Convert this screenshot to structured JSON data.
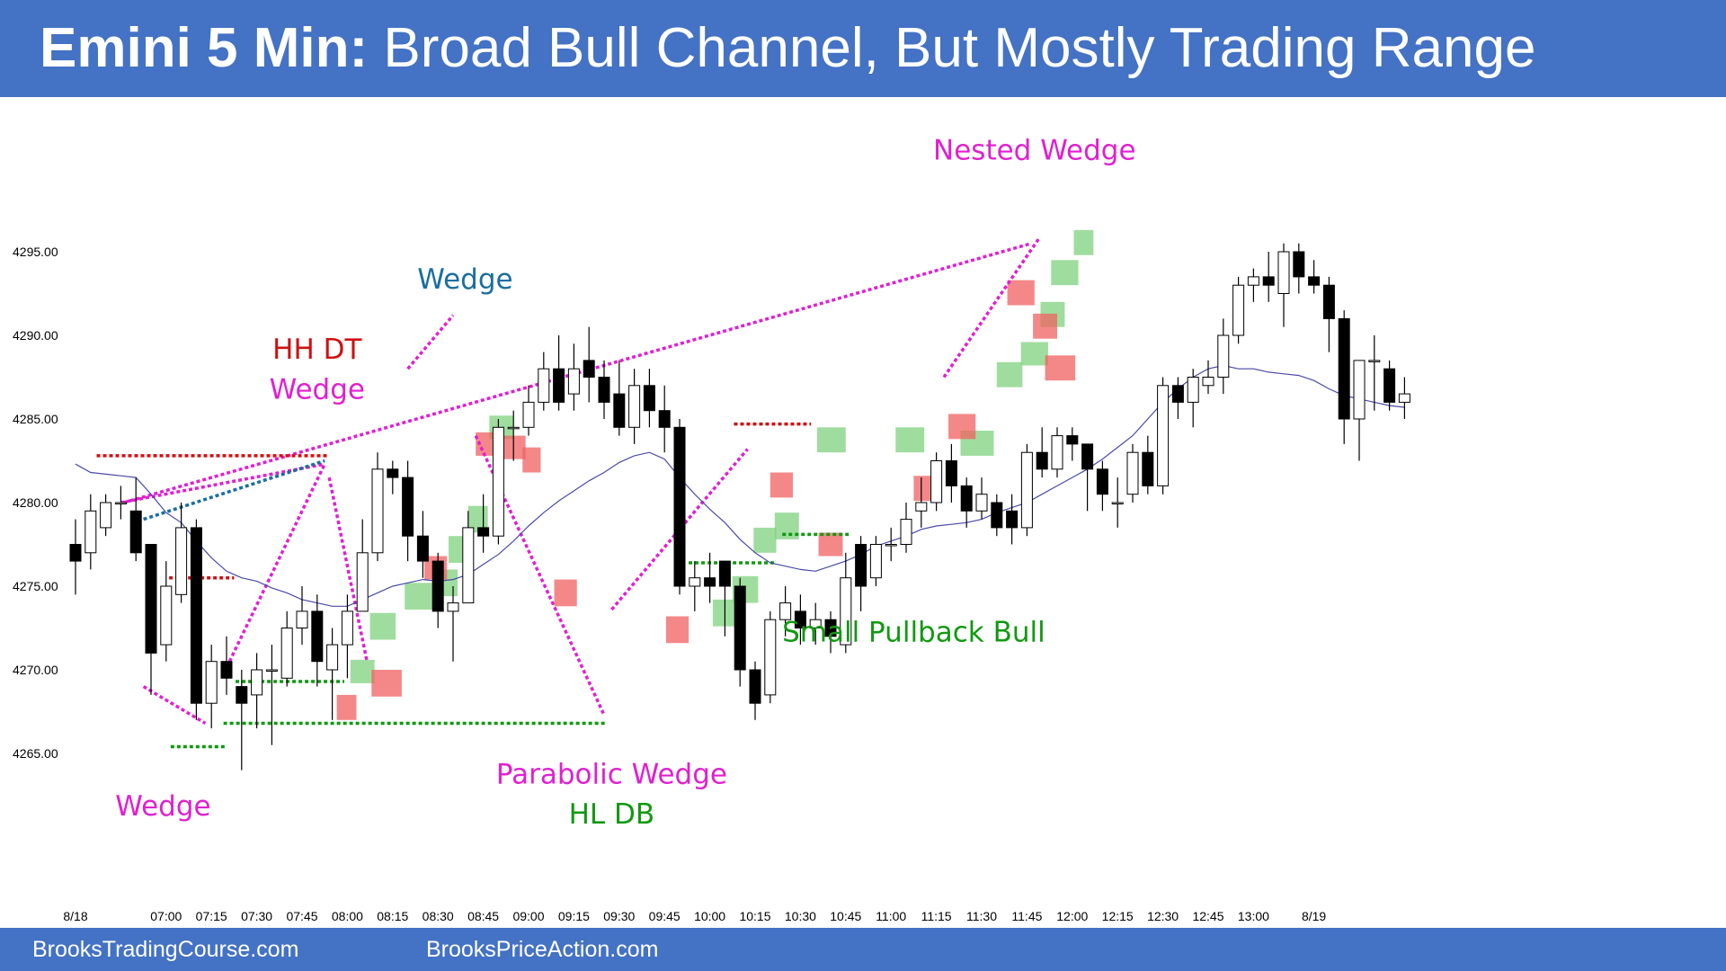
{
  "header": {
    "title_bold": "Emini 5 Min:",
    "title_rest": "Broad Bull Channel, But Mostly Trading Range"
  },
  "footer": {
    "left_link": "BrooksTradingCourse.com",
    "right_link": "BrooksPriceAction.com"
  },
  "colors": {
    "banner": "#4472c4",
    "bull_body": "#ffffff",
    "bear_body": "#000000",
    "ema": "#4a4aa8",
    "green_box": "#7fd17f",
    "red_box": "#f06060",
    "magenta": "#e020d0",
    "red_line": "#d01010",
    "green_line": "#119911",
    "teal_line": "#1a6ea0"
  },
  "chart_data": {
    "type": "candlestick",
    "title": "Emini 5 Min: Broad Bull Channel, But Mostly Trading Range",
    "ylim": [
      4262.5,
      4300
    ],
    "y_ticks": [
      4265,
      4270,
      4275,
      4280,
      4285,
      4290,
      4295
    ],
    "y_tick_labels": [
      "4265.00",
      "4270.00",
      "4275.00",
      "4280.00",
      "4285.00",
      "4290.00",
      "4295.00"
    ],
    "x_ticks": [
      {
        "i": 0,
        "label": "8/18"
      },
      {
        "i": 6,
        "label": "07:00"
      },
      {
        "i": 9,
        "label": "07:15"
      },
      {
        "i": 12,
        "label": "07:30"
      },
      {
        "i": 15,
        "label": "07:45"
      },
      {
        "i": 18,
        "label": "08:00"
      },
      {
        "i": 21,
        "label": "08:15"
      },
      {
        "i": 24,
        "label": "08:30"
      },
      {
        "i": 27,
        "label": "08:45"
      },
      {
        "i": 30,
        "label": "09:00"
      },
      {
        "i": 33,
        "label": "09:15"
      },
      {
        "i": 36,
        "label": "09:30"
      },
      {
        "i": 39,
        "label": "09:45"
      },
      {
        "i": 42,
        "label": "10:00"
      },
      {
        "i": 45,
        "label": "10:15"
      },
      {
        "i": 48,
        "label": "10:30"
      },
      {
        "i": 51,
        "label": "10:45"
      },
      {
        "i": 54,
        "label": "11:00"
      },
      {
        "i": 57,
        "label": "11:15"
      },
      {
        "i": 60,
        "label": "11:30"
      },
      {
        "i": 63,
        "label": "11:45"
      },
      {
        "i": 66,
        "label": "12:00"
      },
      {
        "i": 69,
        "label": "12:15"
      },
      {
        "i": 72,
        "label": "12:30"
      },
      {
        "i": 75,
        "label": "12:45"
      },
      {
        "i": 78,
        "label": "13:00"
      },
      {
        "i": 82,
        "label": "8/19"
      }
    ],
    "candles": [
      [
        4277.5,
        4276.5,
        4279.0,
        4274.5
      ],
      [
        4277.0,
        4279.5,
        4280.5,
        4276.0
      ],
      [
        4278.5,
        4280.0,
        4280.5,
        4278.0
      ],
      [
        4280.0,
        4280.0,
        4281.0,
        4279.0
      ],
      [
        4279.5,
        4277.0,
        4281.5,
        4276.5
      ],
      [
        4277.5,
        4271.0,
        4277.5,
        4268.5
      ],
      [
        4271.5,
        4275.0,
        4276.5,
        4270.5
      ],
      [
        4274.5,
        4278.5,
        4280.0,
        4274.0
      ],
      [
        4278.5,
        4268.0,
        4279.0,
        4267.0
      ],
      [
        4268.0,
        4270.5,
        4271.5,
        4266.5
      ],
      [
        4270.5,
        4269.5,
        4272.0,
        4268.5
      ],
      [
        4269.0,
        4268.0,
        4270.0,
        4264.0
      ],
      [
        4268.5,
        4270.0,
        4271.0,
        4266.5
      ],
      [
        4270.0,
        4270.0,
        4271.5,
        4265.5
      ],
      [
        4269.5,
        4272.5,
        4273.5,
        4269.0
      ],
      [
        4272.5,
        4273.5,
        4275.0,
        4271.5
      ],
      [
        4273.5,
        4270.5,
        4274.5,
        4269.0
      ],
      [
        4270.0,
        4271.5,
        4272.5,
        4267.0
      ],
      [
        4271.5,
        4273.5,
        4274.5,
        4269.5
      ],
      [
        4273.5,
        4277.0,
        4279.0,
        4273.5
      ],
      [
        4277.0,
        4282.0,
        4283.0,
        4276.5
      ],
      [
        4282.0,
        4281.5,
        4282.5,
        4280.5
      ],
      [
        4281.5,
        4278.0,
        4282.5,
        4276.5
      ],
      [
        4278.0,
        4276.5,
        4279.5,
        4275.5
      ],
      [
        4276.5,
        4273.5,
        4277.0,
        4272.5
      ],
      [
        4273.5,
        4274.0,
        4275.0,
        4270.5
      ],
      [
        4274.0,
        4278.5,
        4279.5,
        4274.0
      ],
      [
        4278.5,
        4278.0,
        4280.5,
        4277.0
      ],
      [
        4278.0,
        4284.5,
        4285.0,
        4277.5
      ],
      [
        4284.5,
        4284.5,
        4285.5,
        4282.5
      ],
      [
        4284.5,
        4286.0,
        4287.0,
        4284.0
      ],
      [
        4286.0,
        4288.0,
        4289.0,
        4285.5
      ],
      [
        4288.0,
        4286.0,
        4290.0,
        4285.5
      ],
      [
        4286.5,
        4288.0,
        4289.5,
        4285.5
      ],
      [
        4288.5,
        4287.5,
        4290.5,
        4286.0
      ],
      [
        4287.5,
        4286.0,
        4288.5,
        4285.0
      ],
      [
        4286.5,
        4284.5,
        4288.5,
        4284.0
      ],
      [
        4284.5,
        4287.0,
        4288.0,
        4283.5
      ],
      [
        4287.0,
        4285.5,
        4288.0,
        4284.5
      ],
      [
        4285.5,
        4284.5,
        4287.0,
        4283.0
      ],
      [
        4284.5,
        4275.0,
        4285.0,
        4274.5
      ],
      [
        4275.0,
        4275.5,
        4276.5,
        4273.5
      ],
      [
        4275.5,
        4275.0,
        4277.0,
        4274.0
      ],
      [
        4276.5,
        4275.0,
        4276.5,
        4272.0
      ],
      [
        4275.0,
        4270.0,
        4275.5,
        4269.0
      ],
      [
        4270.0,
        4268.0,
        4270.5,
        4267.0
      ],
      [
        4268.5,
        4273.0,
        4273.5,
        4268.0
      ],
      [
        4273.0,
        4274.0,
        4275.0,
        4272.0
      ],
      [
        4273.5,
        4272.5,
        4274.5,
        4271.5
      ],
      [
        4272.5,
        4273.0,
        4274.0,
        4271.5
      ],
      [
        4273.0,
        4272.0,
        4273.5,
        4271.0
      ],
      [
        4271.5,
        4275.5,
        4277.0,
        4271.0
      ],
      [
        4277.5,
        4275.0,
        4278.0,
        4273.5
      ],
      [
        4275.5,
        4277.5,
        4278.0,
        4275.0
      ],
      [
        4277.5,
        4277.5,
        4278.5,
        4276.5
      ],
      [
        4277.5,
        4279.0,
        4280.0,
        4277.0
      ],
      [
        4279.5,
        4280.0,
        4281.5,
        4278.5
      ],
      [
        4280.0,
        4282.5,
        4283.0,
        4279.5
      ],
      [
        4282.5,
        4281.0,
        4283.5,
        4280.0
      ],
      [
        4281.0,
        4279.5,
        4281.5,
        4278.5
      ],
      [
        4279.5,
        4280.5,
        4281.5,
        4279.0
      ],
      [
        4280.0,
        4278.5,
        4280.5,
        4278.0
      ],
      [
        4279.5,
        4278.5,
        4280.5,
        4277.5
      ],
      [
        4278.5,
        4283.0,
        4283.5,
        4278.0
      ],
      [
        4283.0,
        4282.0,
        4284.5,
        4281.5
      ],
      [
        4282.0,
        4284.0,
        4284.5,
        4281.5
      ],
      [
        4284.0,
        4283.5,
        4284.5,
        4282.5
      ],
      [
        4283.5,
        4282.0,
        4283.5,
        4279.5
      ],
      [
        4282.0,
        4280.5,
        4282.5,
        4279.5
      ],
      [
        4280.0,
        4280.0,
        4281.5,
        4278.5
      ],
      [
        4280.5,
        4283.0,
        4283.5,
        4280.0
      ],
      [
        4283.0,
        4281.0,
        4284.0,
        4280.5
      ],
      [
        4281.0,
        4287.0,
        4287.5,
        4280.5
      ],
      [
        4287.0,
        4286.0,
        4287.5,
        4285.0
      ],
      [
        4286.0,
        4287.5,
        4288.0,
        4284.5
      ],
      [
        4287.0,
        4287.5,
        4288.5,
        4286.5
      ],
      [
        4287.5,
        4290.0,
        4291.0,
        4286.5
      ],
      [
        4290.0,
        4293.0,
        4293.5,
        4289.5
      ],
      [
        4293.0,
        4293.5,
        4294.0,
        4292.0
      ],
      [
        4293.5,
        4293.0,
        4295.0,
        4292.0
      ],
      [
        4292.5,
        4295.0,
        4295.5,
        4290.5
      ],
      [
        4295.0,
        4293.5,
        4295.5,
        4292.5
      ],
      [
        4293.5,
        4293.0,
        4294.5,
        4292.5
      ],
      [
        4293.0,
        4291.0,
        4293.5,
        4289.0
      ],
      [
        4291.0,
        4285.0,
        4291.5,
        4283.5
      ],
      [
        4285.0,
        4288.5,
        4288.5,
        4282.5
      ],
      [
        4288.5,
        4288.5,
        4290.0,
        4285.5
      ],
      [
        4288.0,
        4286.0,
        4288.5,
        4285.5
      ],
      [
        4286.0,
        4286.5,
        4287.5,
        4285.0
      ]
    ],
    "ema": [
      4282.3,
      4281.8,
      4281.7,
      4281.6,
      4281.5,
      4280.5,
      4279.4,
      4278.8,
      4277.7,
      4276.7,
      4275.9,
      4275.5,
      4275.3,
      4274.9,
      4274.6,
      4274.2,
      4274.0,
      4273.8,
      4273.8,
      4274.2,
      4274.6,
      4275.0,
      4275.2,
      4275.4,
      4275.3,
      4275.4,
      4275.7,
      4276.3,
      4276.9,
      4277.7,
      4278.6,
      4279.4,
      4280.1,
      4280.7,
      4281.3,
      4281.8,
      4282.4,
      4282.8,
      4283.0,
      4282.6,
      4281.5,
      4280.5,
      4279.6,
      4278.8,
      4277.8,
      4277.0,
      4276.4,
      4276.2,
      4276.0,
      4275.9,
      4276.2,
      4276.5,
      4276.9,
      4277.4,
      4277.7,
      4278.0,
      4278.4,
      4278.6,
      4278.7,
      4278.8,
      4279.0,
      4279.4,
      4279.7,
      4280.0,
      4280.5,
      4281.0,
      4281.5,
      4282.0,
      4282.6,
      4283.3,
      4284.0,
      4285.0,
      4286.0,
      4286.8,
      4287.5,
      4288.0,
      4288.2,
      4288.0,
      4288.0,
      4287.8,
      4287.7,
      4287.6,
      4287.3,
      4286.8,
      4286.4,
      4286.2,
      4286.0,
      4285.8,
      4285.7
    ],
    "green_boxes": [
      {
        "i1": 18.2,
        "i2": 19.8,
        "p1": 4270.6,
        "p2": 4269.2
      },
      {
        "i1": 19.5,
        "i2": 21.2,
        "p1": 4273.4,
        "p2": 4271.8
      },
      {
        "i1": 21.8,
        "i2": 23.7,
        "p1": 4275.2,
        "p2": 4273.6
      },
      {
        "i1": 23.8,
        "i2": 25.3,
        "p1": 4276.0,
        "p2": 4274.4
      },
      {
        "i1": 26.0,
        "i2": 27.3,
        "p1": 4279.8,
        "p2": 4278.2
      },
      {
        "i1": 24.7,
        "i2": 26.3,
        "p1": 4278.0,
        "p2": 4276.4
      },
      {
        "i1": 27.4,
        "i2": 29.0,
        "p1": 4285.2,
        "p2": 4283.8
      },
      {
        "i1": 42.2,
        "i2": 43.7,
        "p1": 4274.2,
        "p2": 4272.6
      },
      {
        "i1": 43.5,
        "i2": 45.2,
        "p1": 4275.6,
        "p2": 4274.0
      },
      {
        "i1": 44.9,
        "i2": 46.4,
        "p1": 4278.5,
        "p2": 4277.0
      },
      {
        "i1": 46.3,
        "i2": 47.9,
        "p1": 4279.4,
        "p2": 4277.8
      },
      {
        "i1": 49.1,
        "i2": 51.0,
        "p1": 4284.5,
        "p2": 4283.0
      },
      {
        "i1": 54.3,
        "i2": 56.2,
        "p1": 4284.5,
        "p2": 4283.0
      },
      {
        "i1": 58.6,
        "i2": 60.8,
        "p1": 4284.3,
        "p2": 4282.8
      },
      {
        "i1": 61.0,
        "i2": 62.7,
        "p1": 4288.4,
        "p2": 4286.9
      },
      {
        "i1": 62.6,
        "i2": 64.4,
        "p1": 4289.6,
        "p2": 4288.2
      },
      {
        "i1": 63.9,
        "i2": 65.5,
        "p1": 4292.0,
        "p2": 4290.5
      },
      {
        "i1": 64.6,
        "i2": 66.4,
        "p1": 4294.5,
        "p2": 4293.0
      },
      {
        "i1": 66.1,
        "i2": 67.4,
        "p1": 4296.3,
        "p2": 4294.8
      }
    ],
    "red_boxes": [
      {
        "i1": 17.3,
        "i2": 18.6,
        "p1": 4268.5,
        "p2": 4267.0
      },
      {
        "i1": 19.6,
        "i2": 21.6,
        "p1": 4270.0,
        "p2": 4268.4
      },
      {
        "i1": 23.1,
        "i2": 24.6,
        "p1": 4276.8,
        "p2": 4275.4
      },
      {
        "i1": 26.5,
        "i2": 28.0,
        "p1": 4284.2,
        "p2": 4282.8
      },
      {
        "i1": 28.2,
        "i2": 29.8,
        "p1": 4284.0,
        "p2": 4282.6
      },
      {
        "i1": 29.6,
        "i2": 30.8,
        "p1": 4283.3,
        "p2": 4281.8
      },
      {
        "i1": 31.7,
        "i2": 33.2,
        "p1": 4275.4,
        "p2": 4273.8
      },
      {
        "i1": 39.1,
        "i2": 40.6,
        "p1": 4273.2,
        "p2": 4271.6
      },
      {
        "i1": 46.0,
        "i2": 47.5,
        "p1": 4281.8,
        "p2": 4280.3
      },
      {
        "i1": 49.2,
        "i2": 50.8,
        "p1": 4278.2,
        "p2": 4276.8
      },
      {
        "i1": 55.5,
        "i2": 57.2,
        "p1": 4281.6,
        "p2": 4280.1
      },
      {
        "i1": 57.8,
        "i2": 59.6,
        "p1": 4285.3,
        "p2": 4283.8
      },
      {
        "i1": 61.7,
        "i2": 63.5,
        "p1": 4293.3,
        "p2": 4291.8
      },
      {
        "i1": 63.4,
        "i2": 65.0,
        "p1": 4291.3,
        "p2": 4289.8
      },
      {
        "i1": 64.2,
        "i2": 66.2,
        "p1": 4288.8,
        "p2": 4287.3
      }
    ],
    "annotations": [
      {
        "text": "Nested Wedge",
        "i": 63.5,
        "p": 4300.5,
        "color": "#e020d0"
      },
      {
        "text": "Wedge",
        "i": 25.8,
        "p": 4292.8,
        "color": "#1a6ea0"
      },
      {
        "text": "HH DT",
        "i": 16.0,
        "p": 4288.6,
        "color": "#d01010"
      },
      {
        "text": "Wedge",
        "i": 16.0,
        "p": 4286.2,
        "color": "#e020d0"
      },
      {
        "text": "Small Pullback Bull",
        "i": 55.5,
        "p": 4271.7,
        "color": "#119911"
      },
      {
        "text": "Parabolic Wedge",
        "i": 35.5,
        "p": 4263.2,
        "color": "#e020d0"
      },
      {
        "text": "HL DB",
        "i": 35.5,
        "p": 4260.8,
        "color": "#119911"
      },
      {
        "text": "Wedge",
        "i": 5.8,
        "p": 4261.3,
        "color": "#e020d0"
      }
    ]
  }
}
